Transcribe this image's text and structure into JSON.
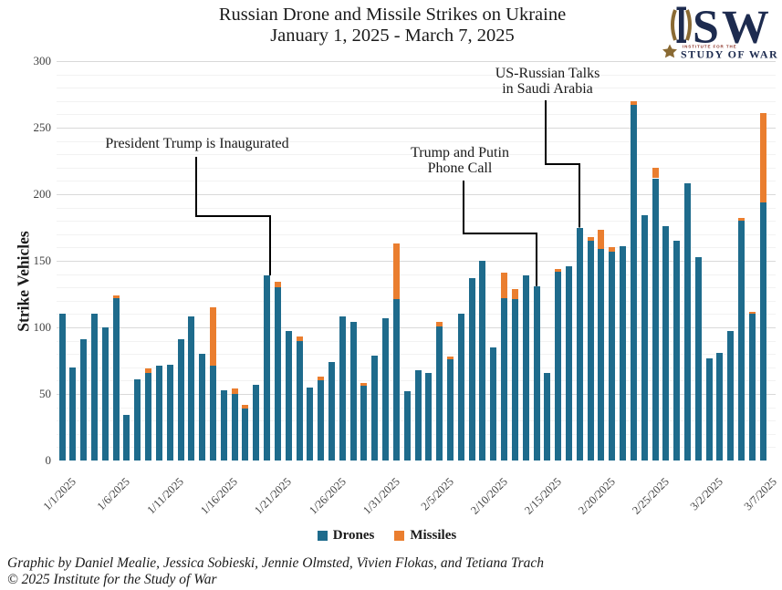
{
  "title": {
    "line1": "Russian Drone and Missile Strikes on Ukraine",
    "line2": "January 1, 2025 - March 7, 2025"
  },
  "logo": {
    "acronym": "ISW",
    "line1": "INSTITUTE FOR THE",
    "line2": "STUDY OF WAR"
  },
  "chart_data": {
    "type": "bar",
    "stacked": true,
    "title": "Russian Drone and Missile Strikes on Ukraine",
    "subtitle": "January 1, 2025 - March 7, 2025",
    "xlabel": "",
    "ylabel": "Strike Vehicles",
    "ylim": [
      0,
      300
    ],
    "ytick_step": 50,
    "minor_grid_step": 10,
    "grid": "horizontal",
    "legend_position": "bottom center",
    "categories": [
      "1/1/2025",
      "1/2/2025",
      "1/3/2025",
      "1/4/2025",
      "1/5/2025",
      "1/6/2025",
      "1/7/2025",
      "1/8/2025",
      "1/9/2025",
      "1/10/2025",
      "1/11/2025",
      "1/12/2025",
      "1/13/2025",
      "1/14/2025",
      "1/15/2025",
      "1/16/2025",
      "1/17/2025",
      "1/18/2025",
      "1/19/2025",
      "1/20/2025",
      "1/21/2025",
      "1/22/2025",
      "1/23/2025",
      "1/24/2025",
      "1/25/2025",
      "1/26/2025",
      "1/27/2025",
      "1/28/2025",
      "1/29/2025",
      "1/30/2025",
      "1/31/2025",
      "2/1/2025",
      "2/2/2025",
      "2/3/2025",
      "2/4/2025",
      "2/5/2025",
      "2/6/2025",
      "2/7/2025",
      "2/8/2025",
      "2/9/2025",
      "2/10/2025",
      "2/11/2025",
      "2/12/2025",
      "2/13/2025",
      "2/14/2025",
      "2/15/2025",
      "2/16/2025",
      "2/17/2025",
      "2/18/2025",
      "2/19/2025",
      "2/20/2025",
      "2/21/2025",
      "2/22/2025",
      "2/23/2025",
      "2/24/2025",
      "2/25/2025",
      "2/26/2025",
      "2/27/2025",
      "2/28/2025",
      "3/1/2025",
      "3/2/2025",
      "3/3/2025",
      "3/4/2025",
      "3/5/2025",
      "3/6/2025",
      "3/7/2025"
    ],
    "xtick_every": 5,
    "series": [
      {
        "name": "Drones",
        "color": "#1e6b8c",
        "values": [
          110,
          70,
          91,
          110,
          100,
          122,
          34,
          61,
          66,
          71,
          72,
          91,
          108,
          80,
          71,
          53,
          50,
          39,
          57,
          139,
          130,
          97,
          90,
          55,
          60,
          74,
          108,
          104,
          56,
          79,
          107,
          121,
          52,
          68,
          66,
          101,
          76,
          110,
          137,
          150,
          85,
          122,
          121,
          139,
          131,
          66,
          142,
          146,
          175,
          165,
          159,
          157,
          161,
          267,
          184,
          212,
          176,
          165,
          208,
          153,
          77,
          81,
          97,
          180,
          110,
          194
        ]
      },
      {
        "name": "Missiles",
        "color": "#ea7e2f",
        "values": [
          0,
          0,
          0,
          0,
          0,
          2,
          0,
          0,
          3,
          0,
          0,
          0,
          0,
          0,
          44,
          0,
          4,
          3,
          0,
          0,
          4,
          0,
          3,
          0,
          3,
          0,
          0,
          0,
          2,
          0,
          0,
          42,
          0,
          0,
          0,
          3,
          2,
          0,
          0,
          0,
          0,
          19,
          8,
          0,
          0,
          0,
          2,
          0,
          0,
          3,
          14,
          3,
          0,
          3,
          0,
          8,
          0,
          0,
          0,
          0,
          0,
          0,
          0,
          2,
          2,
          67
        ]
      }
    ],
    "annotations": [
      {
        "text": "President Trump is Inaugurated",
        "points_to": "1/20/2025"
      },
      {
        "text": "Trump and Putin\nPhone Call",
        "points_to": "2/14/2025"
      },
      {
        "text": "US-Russian Talks\nin Saudi Arabia",
        "points_to": "2/18/2025"
      }
    ]
  },
  "footer": {
    "credit": "Graphic by Daniel Mealie, Jessica Sobieski, Jennie Olmsted, Vivien Flokas, and Tetiana Trach",
    "copyright": "© 2025 Institute for the Study of War"
  }
}
